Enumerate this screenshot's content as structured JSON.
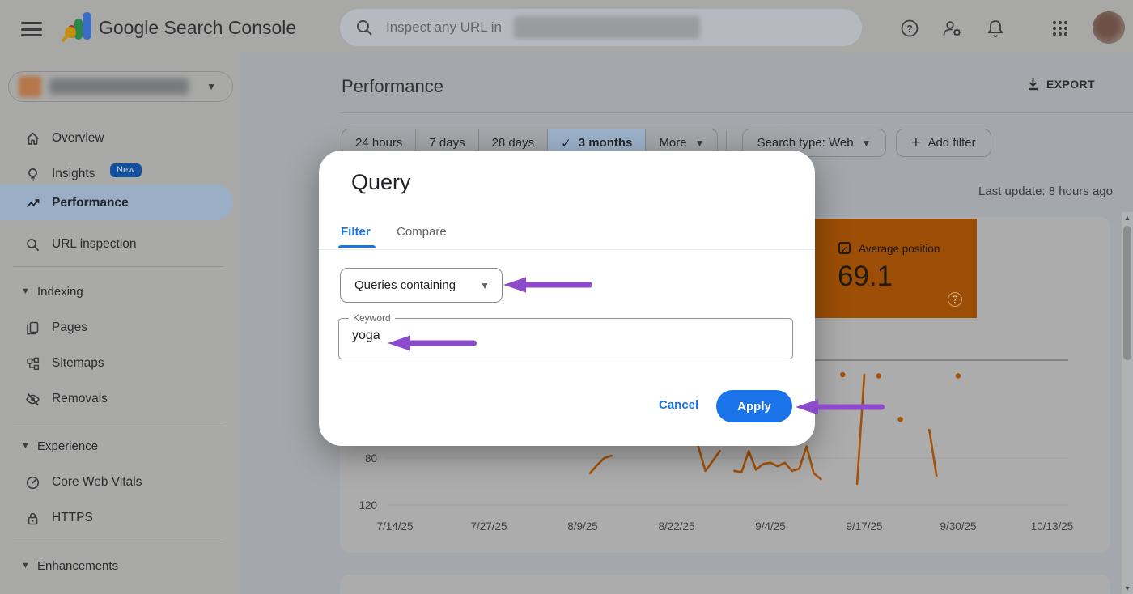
{
  "topbar": {
    "product_name": "Google Search Console",
    "search_placeholder": "Inspect any URL in"
  },
  "sidebar": {
    "items": [
      {
        "label": "Overview"
      },
      {
        "label": "Insights",
        "badge": "New"
      },
      {
        "label": "Performance",
        "selected": true
      },
      {
        "label": "URL inspection"
      }
    ],
    "sections": [
      {
        "label": "Indexing",
        "items": [
          {
            "label": "Pages"
          },
          {
            "label": "Sitemaps"
          },
          {
            "label": "Removals"
          }
        ]
      },
      {
        "label": "Experience",
        "items": [
          {
            "label": "Core Web Vitals"
          },
          {
            "label": "HTTPS"
          }
        ]
      },
      {
        "label": "Enhancements",
        "items": []
      }
    ]
  },
  "header": {
    "title": "Performance",
    "export_label": "EXPORT"
  },
  "filters": {
    "ranges": [
      "24 hours",
      "7 days",
      "28 days",
      "3 months"
    ],
    "selected_range": "3 months",
    "more_label": "More",
    "search_type_label": "Search type: Web",
    "add_filter_label": "Add filter",
    "plus": "+"
  },
  "status": {
    "last_update": "Last update: 8 hours ago"
  },
  "metric_card": {
    "label": "Average position",
    "value": "69.1",
    "checked": true,
    "color": "#e8710a"
  },
  "modal": {
    "title": "Query",
    "tabs": [
      "Filter",
      "Compare"
    ],
    "active_tab": "Filter",
    "operator_value": "Queries containing",
    "keyword_label": "Keyword",
    "keyword_value": "yoga",
    "cancel_label": "Cancel",
    "apply_label": "Apply"
  },
  "colors": {
    "accent_blue": "#1a73e8",
    "arrow_purple": "#8c4bcb",
    "selected_nav_dimmed": "#9aafc6",
    "metric_orange_dimmed": "#9c4e06"
  },
  "chart_data": {
    "type": "line",
    "series_name": "Average position",
    "y_inverted": true,
    "x_ticks": [
      "7/14/25",
      "7/27/25",
      "8/9/25",
      "8/22/25",
      "9/4/25",
      "9/17/25",
      "9/30/25",
      "10/13/25"
    ],
    "y_ticks": [
      80,
      120
    ],
    "grid": true,
    "segments": [
      [
        {
          "date": "8/10/25",
          "position": 93
        },
        {
          "date": "8/11/25",
          "position": 86
        },
        {
          "date": "8/12/25",
          "position": 80
        },
        {
          "date": "8/13/25",
          "position": 78
        }
      ],
      [
        {
          "date": "8/25/25",
          "position": 70
        },
        {
          "date": "8/26/25",
          "position": 91
        },
        {
          "date": "8/28/25",
          "position": 74
        }
      ],
      [
        {
          "date": "8/30/25",
          "position": 91
        },
        {
          "date": "8/31/25",
          "position": 92
        },
        {
          "date": "9/1/25",
          "position": 74
        },
        {
          "date": "9/2/25",
          "position": 90
        },
        {
          "date": "9/3/25",
          "position": 85
        },
        {
          "date": "9/4/25",
          "position": 84
        },
        {
          "date": "9/5/25",
          "position": 87
        },
        {
          "date": "9/6/25",
          "position": 84
        },
        {
          "date": "9/7/25",
          "position": 91
        },
        {
          "date": "9/8/25",
          "position": 89
        },
        {
          "date": "9/9/25",
          "position": 70
        },
        {
          "date": "9/10/25",
          "position": 93
        },
        {
          "date": "9/11/25",
          "position": 98
        }
      ],
      [
        {
          "date": "9/16/25",
          "position": 102
        },
        {
          "date": "9/17/25",
          "position": 9
        }
      ],
      [
        {
          "date": "9/26/25",
          "position": 56
        },
        {
          "date": "9/27/25",
          "position": 95
        }
      ]
    ],
    "isolated_points": [
      {
        "date": "9/14/25",
        "position": 9
      },
      {
        "date": "9/19/25",
        "position": 10
      },
      {
        "date": "9/22/25",
        "position": 47
      },
      {
        "date": "9/30/25",
        "position": 10
      }
    ],
    "colors": {
      "line": "#a55207",
      "grid": "#9da0a3",
      "axis": "#737678",
      "label": "#3f4144"
    }
  }
}
